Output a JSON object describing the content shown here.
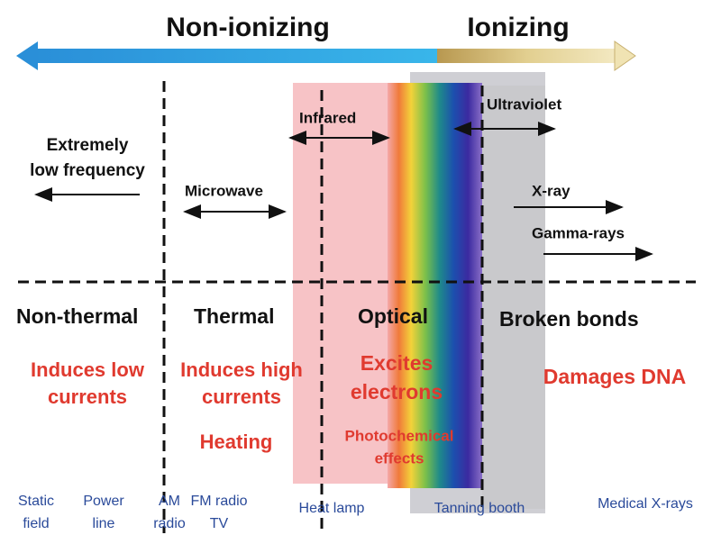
{
  "header": {
    "left": "Non-ionizing",
    "right": "Ionizing"
  },
  "bands": {
    "infrared": "Infrared",
    "ultraviolet": "Ultraviolet",
    "elf": [
      "Extremely",
      "low frequency"
    ],
    "microwave": "Microwave",
    "xray": "X-ray",
    "gamma": "Gamma-rays"
  },
  "effects": [
    {
      "title": "Non-thermal",
      "detail": [
        [
          "Induces low",
          "currents"
        ]
      ]
    },
    {
      "title": "Thermal",
      "detail": [
        [
          "Induces high",
          "currents"
        ],
        [
          "Heating"
        ]
      ]
    },
    {
      "title": "Optical",
      "detail": [
        [
          "Excites",
          "electrons"
        ],
        [
          "Photochemical",
          "effects"
        ]
      ]
    },
    {
      "title": "Broken bonds",
      "detail": [
        [
          "Damages DNA"
        ]
      ]
    }
  ],
  "sources": [
    [
      "Static",
      "field"
    ],
    [
      "Power",
      "line"
    ],
    [
      "AM",
      "radio"
    ],
    [
      "FM radio",
      "TV"
    ],
    [
      "Heat lamp"
    ],
    [
      "Tanning  booth"
    ],
    [
      "Medical X-rays"
    ]
  ]
}
